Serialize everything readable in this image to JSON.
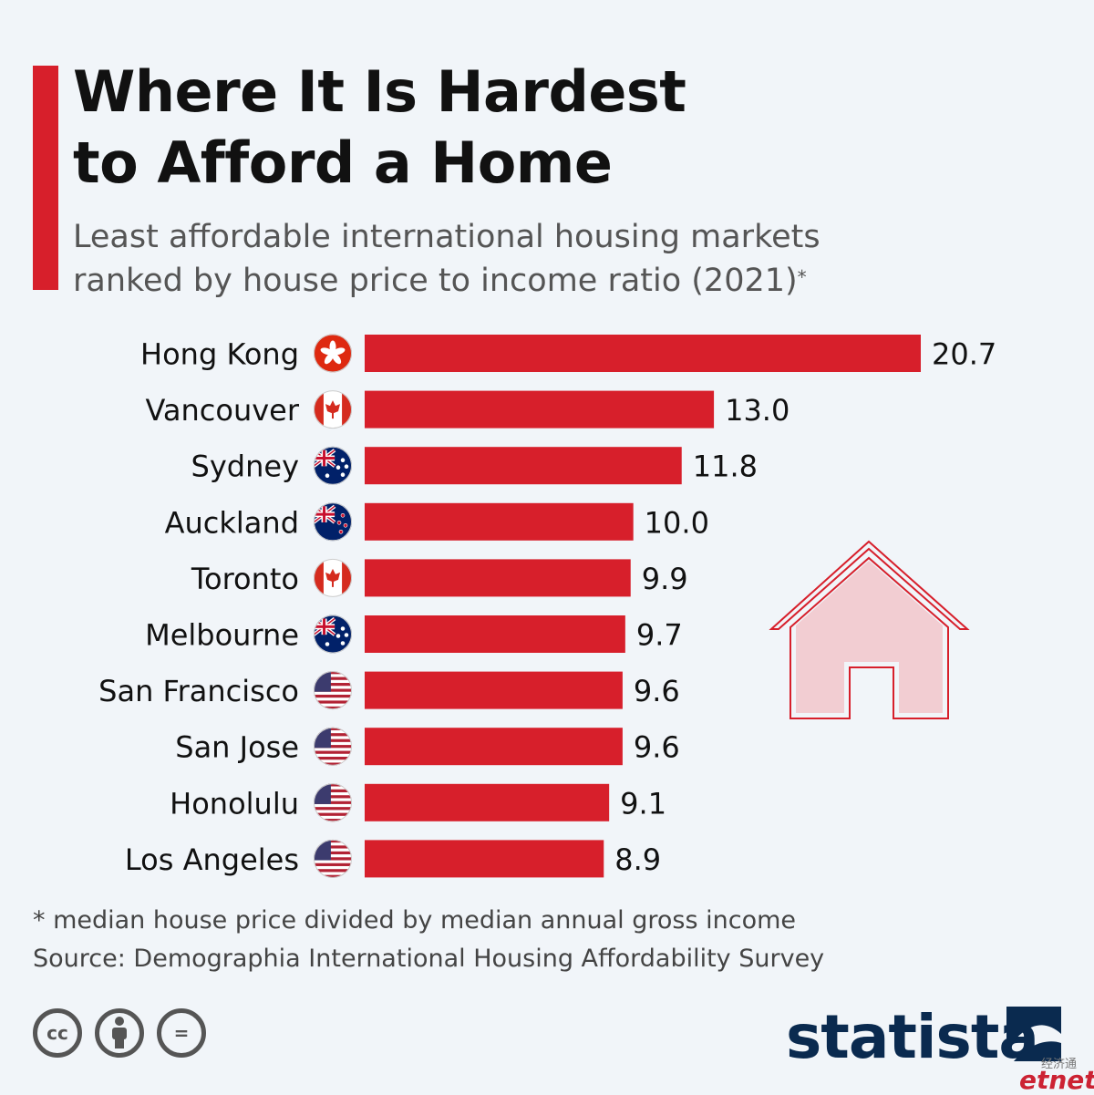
{
  "header": {
    "title_line1": "Where It Is Hardest",
    "title_line2": "to Afford a Home",
    "subtitle_line1": "Least affordable international housing markets",
    "subtitle_line2": "ranked by house price to income ratio (2021)",
    "subtitle_mark": "*"
  },
  "chart_data": {
    "type": "bar",
    "orientation": "horizontal",
    "title": "Where It Is Hardest to Afford a Home",
    "subtitle": "Least affordable international housing markets ranked by house price to income ratio (2021)*",
    "categories": [
      "Hong Kong",
      "Vancouver",
      "Sydney",
      "Auckland",
      "Toronto",
      "Melbourne",
      "San Francisco",
      "San Jose",
      "Honolulu",
      "Los Angeles"
    ],
    "values": [
      20.7,
      13.0,
      11.8,
      10.0,
      9.9,
      9.7,
      9.6,
      9.6,
      9.1,
      8.9
    ],
    "value_labels": [
      "20.7",
      "13.0",
      "11.8",
      "10.0",
      "9.9",
      "9.7",
      "9.6",
      "9.6",
      "9.1",
      "8.9"
    ],
    "flags": [
      "hong-kong",
      "canada",
      "australia",
      "new-zealand",
      "canada",
      "australia",
      "usa",
      "usa",
      "usa",
      "usa"
    ],
    "xlim": [
      0,
      20.7
    ],
    "grid": false,
    "bar_color": "#d71f2b"
  },
  "footer": {
    "footnote": "* median house price divided by median annual gross income",
    "source": "Source: Demographia International Housing Affordability Survey",
    "license_icons": [
      "cc-icon",
      "attribution-icon",
      "no-derivatives-icon"
    ],
    "cc_text": "cc",
    "nd_text": "=",
    "brand": "statista",
    "watermark_cn": "经济通",
    "watermark_en": "etnet"
  },
  "colors": {
    "accent": "#d71f2b",
    "title": "#111111",
    "subtitle": "#555555",
    "brand": "#0a2a4f",
    "background": "#f1f5f9",
    "house_fill": "#f2cdd2"
  }
}
